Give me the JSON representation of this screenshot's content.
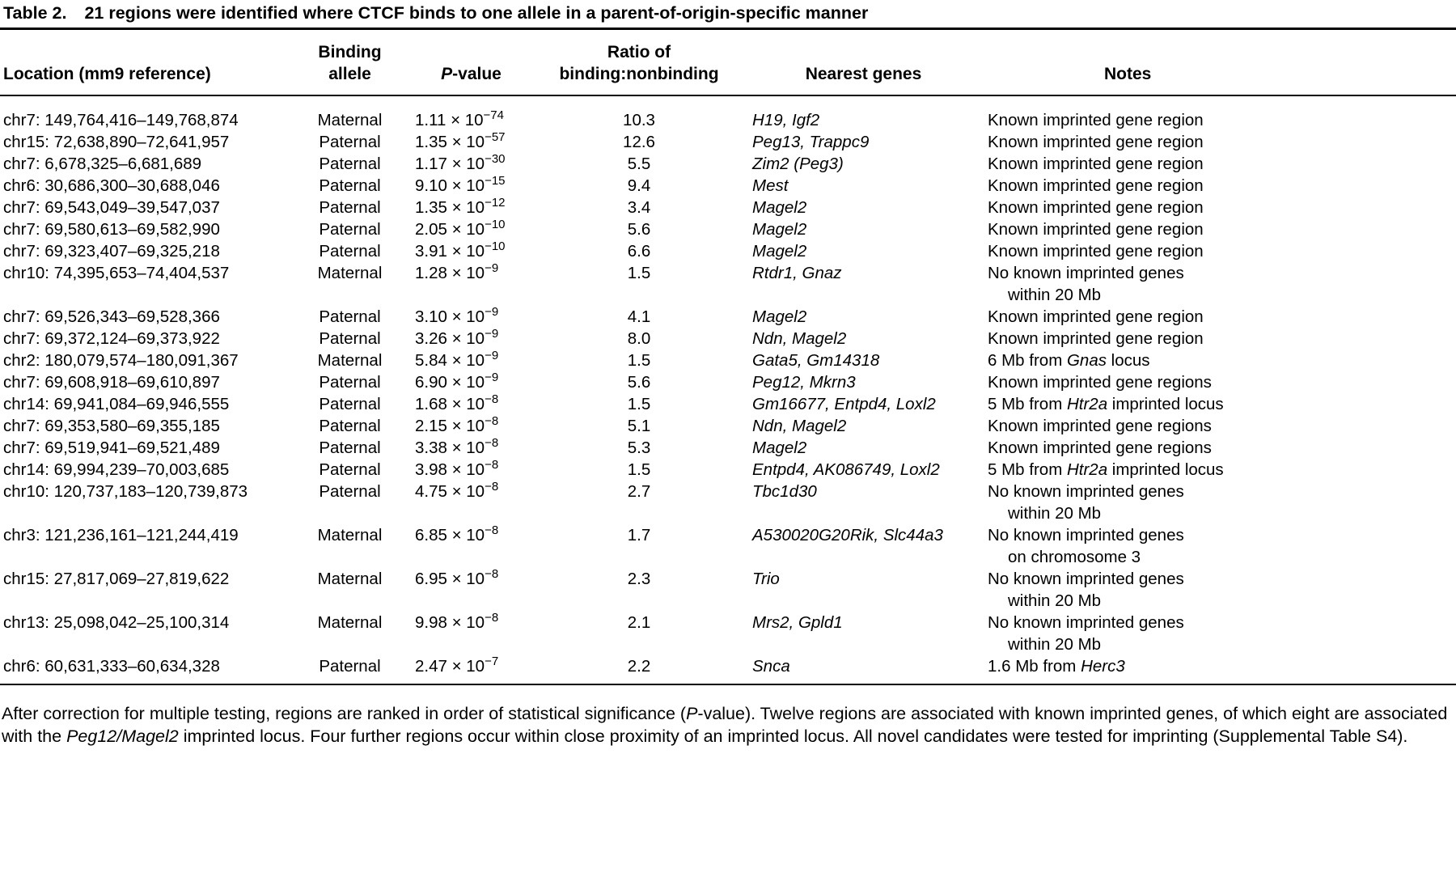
{
  "title": {
    "label": "Table 2.",
    "text": "21 regions were identified where CTCF binds to one allele in a parent-of-origin-specific manner"
  },
  "table": {
    "headers": {
      "location": [
        {
          "t": "Location (mm9 reference)"
        }
      ],
      "allele": [
        {
          "t": "Binding\nallele"
        }
      ],
      "pvalue": [
        {
          "t": "P",
          "i": true
        },
        {
          "t": "-value"
        }
      ],
      "ratio": [
        {
          "t": "Ratio of\nbinding:nonbinding"
        }
      ],
      "genes": [
        {
          "t": "Nearest genes"
        }
      ],
      "notes": [
        {
          "t": "Notes"
        }
      ]
    },
    "rows": [
      {
        "location": "chr7: 149,764,416–149,768,874",
        "allele": "Maternal",
        "p": [
          {
            "t": "1.11 × 10"
          },
          {
            "t": "−74",
            "sup": true
          }
        ],
        "ratio": "10.3",
        "genes": "H19, Igf2",
        "notes": [
          [
            {
              "t": "Known imprinted gene region"
            }
          ]
        ]
      },
      {
        "location": "chr15: 72,638,890–72,641,957",
        "allele": "Paternal",
        "p": [
          {
            "t": "1.35 × 10"
          },
          {
            "t": "−57",
            "sup": true
          }
        ],
        "ratio": "12.6",
        "genes": "Peg13, Trappc9",
        "notes": [
          [
            {
              "t": "Known imprinted gene region"
            }
          ]
        ]
      },
      {
        "location": "chr7: 6,678,325–6,681,689",
        "allele": "Paternal",
        "p": [
          {
            "t": "1.17 × 10"
          },
          {
            "t": "−30",
            "sup": true
          }
        ],
        "ratio": "5.5",
        "genes": "Zim2 (Peg3)",
        "notes": [
          [
            {
              "t": "Known imprinted gene region"
            }
          ]
        ]
      },
      {
        "location": "chr6: 30,686,300–30,688,046",
        "allele": "Paternal",
        "p": [
          {
            "t": "9.10 × 10"
          },
          {
            "t": "−15",
            "sup": true
          }
        ],
        "ratio": "9.4",
        "genes": "Mest",
        "notes": [
          [
            {
              "t": "Known imprinted gene region"
            }
          ]
        ]
      },
      {
        "location": "chr7: 69,543,049–39,547,037",
        "allele": "Paternal",
        "p": [
          {
            "t": "1.35 × 10"
          },
          {
            "t": "−12",
            "sup": true
          }
        ],
        "ratio": "3.4",
        "genes": "Magel2",
        "notes": [
          [
            {
              "t": "Known imprinted gene region"
            }
          ]
        ]
      },
      {
        "location": "chr7: 69,580,613–69,582,990",
        "allele": "Paternal",
        "p": [
          {
            "t": "2.05 × 10"
          },
          {
            "t": "−10",
            "sup": true
          }
        ],
        "ratio": "5.6",
        "genes": "Magel2",
        "notes": [
          [
            {
              "t": "Known imprinted gene region"
            }
          ]
        ]
      },
      {
        "location": "chr7: 69,323,407–69,325,218",
        "allele": "Paternal",
        "p": [
          {
            "t": "3.91 × 10"
          },
          {
            "t": "−10",
            "sup": true
          }
        ],
        "ratio": "6.6",
        "genes": "Magel2",
        "notes": [
          [
            {
              "t": "Known imprinted gene region"
            }
          ]
        ]
      },
      {
        "location": "chr10: 74,395,653–74,404,537",
        "allele": "Maternal",
        "p": [
          {
            "t": "1.28 × 10"
          },
          {
            "t": "−9",
            "sup": true
          }
        ],
        "ratio": "1.5",
        "genes": "Rtdr1, Gnaz",
        "notes": [
          [
            {
              "t": "No known imprinted genes"
            }
          ],
          [
            {
              "t": "within 20 Mb"
            }
          ]
        ]
      },
      {
        "location": "chr7: 69,526,343–69,528,366",
        "allele": "Paternal",
        "p": [
          {
            "t": "3.10 × 10"
          },
          {
            "t": "−9",
            "sup": true
          }
        ],
        "ratio": "4.1",
        "genes": "Magel2",
        "notes": [
          [
            {
              "t": "Known imprinted gene region"
            }
          ]
        ]
      },
      {
        "location": "chr7: 69,372,124–69,373,922",
        "allele": "Paternal",
        "p": [
          {
            "t": "3.26 × 10"
          },
          {
            "t": "−9",
            "sup": true
          }
        ],
        "ratio": "8.0",
        "genes": "Ndn, Magel2",
        "notes": [
          [
            {
              "t": "Known imprinted gene region"
            }
          ]
        ]
      },
      {
        "location": "chr2: 180,079,574–180,091,367",
        "allele": "Maternal",
        "p": [
          {
            "t": "5.84 × 10"
          },
          {
            "t": "−9",
            "sup": true
          }
        ],
        "ratio": "1.5",
        "genes": "Gata5, Gm14318",
        "notes": [
          [
            {
              "t": "6 Mb from "
            },
            {
              "t": "Gnas",
              "i": true
            },
            {
              "t": " locus"
            }
          ]
        ]
      },
      {
        "location": "chr7: 69,608,918–69,610,897",
        "allele": "Paternal",
        "p": [
          {
            "t": "6.90 × 10"
          },
          {
            "t": "−9",
            "sup": true
          }
        ],
        "ratio": "5.6",
        "genes": "Peg12, Mkrn3",
        "notes": [
          [
            {
              "t": "Known imprinted gene regions"
            }
          ]
        ]
      },
      {
        "location": "chr14: 69,941,084–69,946,555",
        "allele": "Paternal",
        "p": [
          {
            "t": "1.68 × 10"
          },
          {
            "t": "−8",
            "sup": true
          }
        ],
        "ratio": "1.5",
        "genes": "Gm16677, Entpd4, Loxl2",
        "notes": [
          [
            {
              "t": "5 Mb from "
            },
            {
              "t": "Htr2a",
              "i": true
            },
            {
              "t": " imprinted locus"
            }
          ]
        ]
      },
      {
        "location": "chr7: 69,353,580–69,355,185",
        "allele": "Paternal",
        "p": [
          {
            "t": "2.15 × 10"
          },
          {
            "t": "−8",
            "sup": true
          }
        ],
        "ratio": "5.1",
        "genes": "Ndn, Magel2",
        "notes": [
          [
            {
              "t": "Known imprinted gene regions"
            }
          ]
        ]
      },
      {
        "location": "chr7: 69,519,941–69,521,489",
        "allele": "Paternal",
        "p": [
          {
            "t": "3.38 × 10"
          },
          {
            "t": "−8",
            "sup": true
          }
        ],
        "ratio": "5.3",
        "genes": "Magel2",
        "notes": [
          [
            {
              "t": "Known imprinted gene regions"
            }
          ]
        ]
      },
      {
        "location": "chr14: 69,994,239–70,003,685",
        "allele": "Paternal",
        "p": [
          {
            "t": "3.98 × 10"
          },
          {
            "t": "−8",
            "sup": true
          }
        ],
        "ratio": "1.5",
        "genes": "Entpd4, AK086749, Loxl2",
        "notes": [
          [
            {
              "t": "5 Mb from "
            },
            {
              "t": "Htr2a",
              "i": true
            },
            {
              "t": " imprinted locus"
            }
          ]
        ]
      },
      {
        "location": "chr10: 120,737,183–120,739,873",
        "allele": "Paternal",
        "p": [
          {
            "t": "4.75 × 10"
          },
          {
            "t": "−8",
            "sup": true
          }
        ],
        "ratio": "2.7",
        "genes": "Tbc1d30",
        "notes": [
          [
            {
              "t": "No known imprinted genes"
            }
          ],
          [
            {
              "t": "within 20 Mb"
            }
          ]
        ]
      },
      {
        "location": "chr3: 121,236,161–121,244,419",
        "allele": "Maternal",
        "p": [
          {
            "t": "6.85 × 10"
          },
          {
            "t": "−8",
            "sup": true
          }
        ],
        "ratio": "1.7",
        "genes": "A530020G20Rik, Slc44a3",
        "notes": [
          [
            {
              "t": "No known imprinted genes"
            }
          ],
          [
            {
              "t": "on chromosome 3"
            }
          ]
        ]
      },
      {
        "location": "chr15: 27,817,069–27,819,622",
        "allele": "Maternal",
        "p": [
          {
            "t": "6.95 × 10"
          },
          {
            "t": "−8",
            "sup": true
          }
        ],
        "ratio": "2.3",
        "genes": "Trio",
        "notes": [
          [
            {
              "t": "No known imprinted genes"
            }
          ],
          [
            {
              "t": "within 20 Mb"
            }
          ]
        ]
      },
      {
        "location": "chr13: 25,098,042–25,100,314",
        "allele": "Maternal",
        "p": [
          {
            "t": "9.98 × 10"
          },
          {
            "t": "−8",
            "sup": true
          }
        ],
        "ratio": "2.1",
        "genes": "Mrs2, Gpld1",
        "notes": [
          [
            {
              "t": "No known imprinted genes"
            }
          ],
          [
            {
              "t": "within 20 Mb"
            }
          ]
        ]
      },
      {
        "location": "chr6: 60,631,333–60,634,328",
        "allele": "Paternal",
        "p": [
          {
            "t": "2.47 × 10"
          },
          {
            "t": "−7",
            "sup": true
          }
        ],
        "ratio": "2.2",
        "genes": "Snca",
        "notes": [
          [
            {
              "t": "1.6 Mb from "
            },
            {
              "t": "Herc3",
              "i": true
            }
          ]
        ]
      }
    ]
  },
  "footnote": [
    {
      "t": "After correction for multiple testing, regions are ranked in order of statistical significance ("
    },
    {
      "t": "P",
      "i": true
    },
    {
      "t": "-value). Twelve regions are associated with known imprinted genes, of which eight are associated with the "
    },
    {
      "t": "Peg12/Magel2",
      "i": true
    },
    {
      "t": " imprinted locus. Four further regions occur within close proximity of an imprinted locus. All novel candidates were tested for imprinting (Supplemental Table S4)."
    }
  ]
}
